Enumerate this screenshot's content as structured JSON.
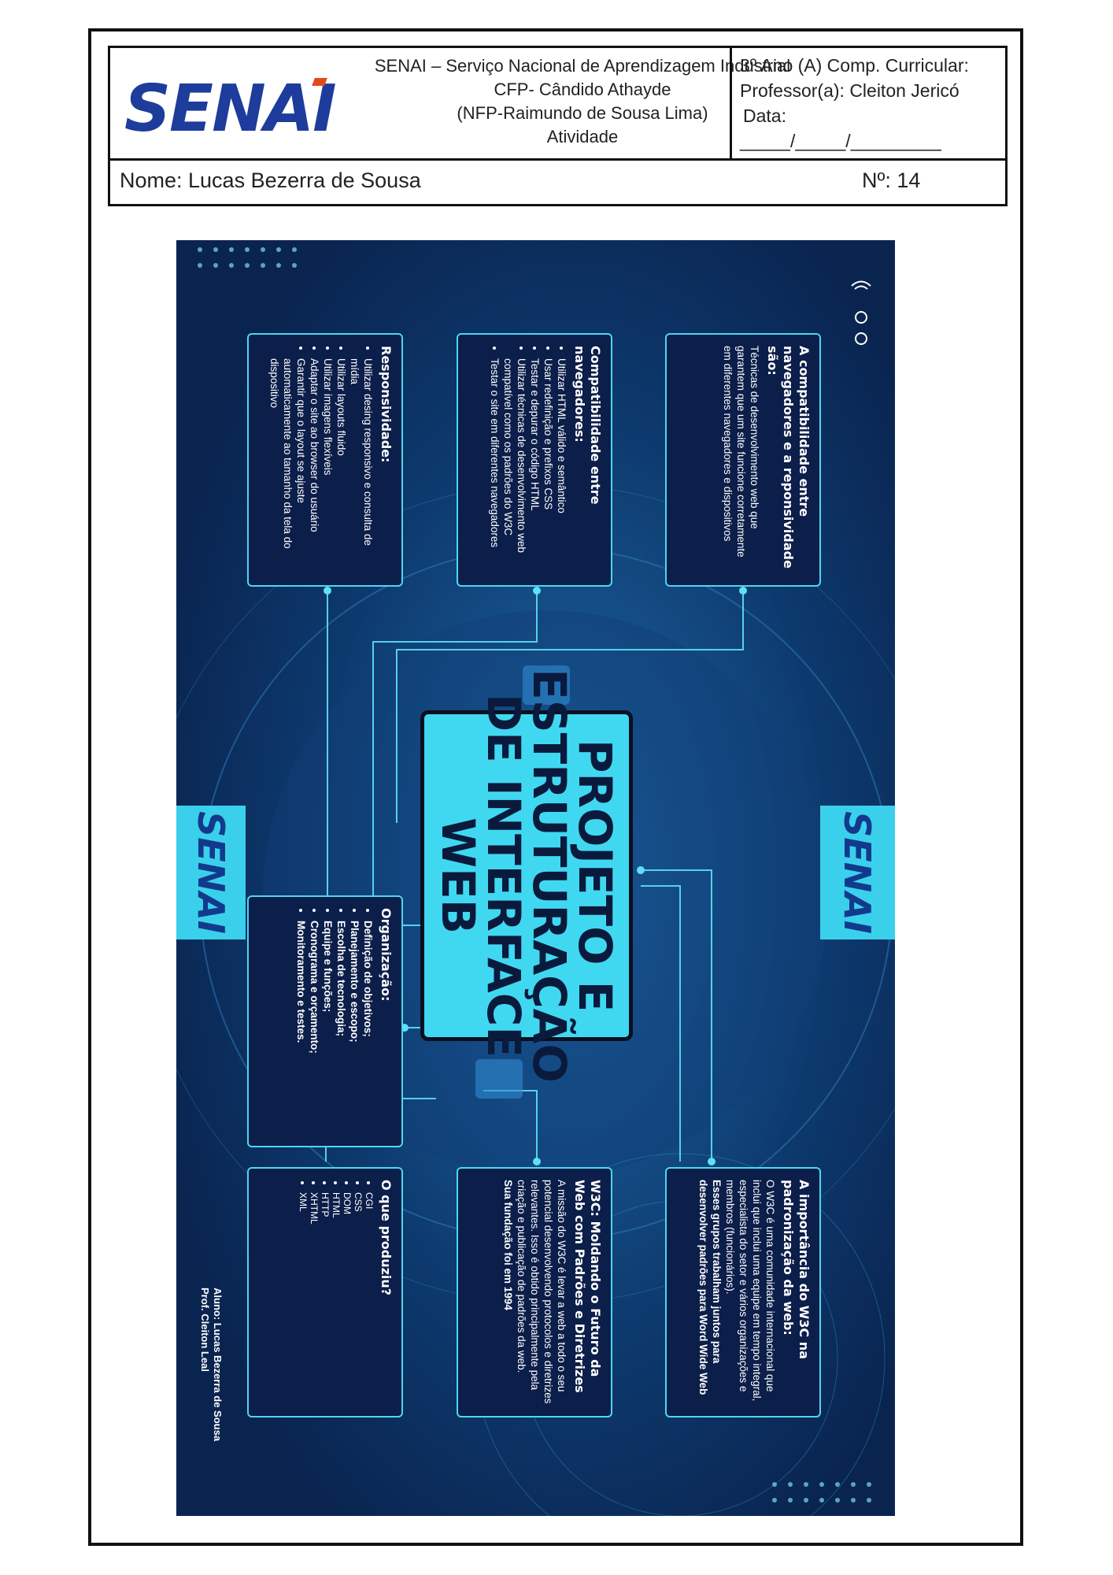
{
  "header": {
    "logo": "SENAI",
    "institution": [
      "SENAI – Serviço Nacional de Aprendizagem Industrial",
      "CFP- Cândido Athayde",
      "(NFP-Raimundo de Sousa Lima)",
      "Atividade"
    ],
    "course": "3º Ano (A) Comp. Curricular:",
    "professor": "Professor(a): Cleiton Jericó",
    "date_label": "Data:",
    "date_blank": "_____/_____/_________",
    "name": "Nome: Lucas Bezerra de Sousa",
    "number": "Nº: 14"
  },
  "poster": {
    "title": "PROJETO E ESTRUTURAÇÃO DE INTERFACE WEB",
    "senai_tab": "SENAI",
    "cards": {
      "compat_intro": {
        "title": "A compatibilidade entre navegadores e a reponsividade são:",
        "body": "Técnicas de desenvolvimento web que garantem que um site funcione corretamente em diferentes navegadores e dispositivos"
      },
      "compat_browsers": {
        "title": "Compatibilidade entre navegadores:",
        "items": [
          "Utilizar HTML válido e semântico",
          "Usar redefinição e prefixos CSS",
          "Testar e depurar o código HTML",
          "Utilizar técnicas de desenvolvimento web compatível como os padrões do W3C",
          "Testar o site em diferentes navegadores"
        ]
      },
      "responsividade": {
        "title": "Responsividade:",
        "items": [
          "Utilizar desing responsivo e consulta de mídia",
          "Utilizar layouts fluido",
          "Utilizar imagens flexíveis",
          "Adaptar o site ao browser do usuário",
          "Garantir que o layout se ajuste automaticamente ao tamanho da tela do dispositivo"
        ]
      },
      "organizacao": {
        "title": "Organização:",
        "items": [
          "Definição de objetivos;",
          "Planejamento e escopo;",
          "Escolha de tecnologia;",
          "Equipe e funções;",
          "Cronograma e orçamento;",
          "Monitoramento e testes."
        ]
      },
      "w3c_importancia": {
        "title": "A importância do W3C na padronização da web:",
        "body": "O W3C é uma comunidade internacional que inclui que inclui uma equipe em tempo integral, especialista do setor e vários organizações e membros (funcionários).",
        "body_bold": "Esses grupos trabalham juntos para desenvolver padrões para Word Wide Web"
      },
      "w3c_futuro": {
        "title": "W3C: Moldando o Futuro da Web com Padrões e Diretrizes",
        "body": "A missão do W3C é levar a web a todo o seu potencial desenvolvendo protocolos e diretrizes relevantes. Isso é obtido principalmente pela criação e publicação de padrões da web.",
        "body_bold": "Sua fundação foi em 1994"
      },
      "produzir": {
        "title": "O que produziu?",
        "items": [
          "CGI",
          "CSS",
          "DOM",
          "HTML",
          "HTTP",
          "XHTML",
          "XML"
        ]
      }
    },
    "credits": [
      "Aluno: Lucas Bezerra de Sousa",
      "Prof. Cleiton Leal"
    ]
  }
}
